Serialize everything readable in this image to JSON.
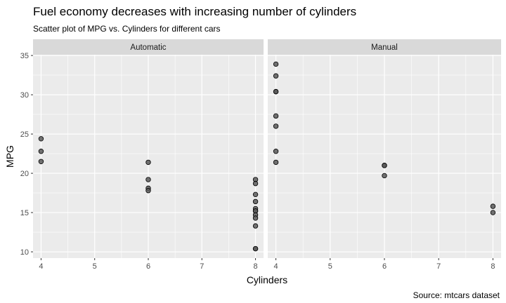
{
  "chart_data": {
    "type": "scatter",
    "title": "Fuel economy decreases with increasing number of cylinders",
    "subtitle": "Scatter plot of MPG vs. Cylinders for different cars",
    "caption": "Source: mtcars dataset",
    "xlabel": "Cylinders",
    "ylabel": "MPG",
    "xlim": [
      3.85,
      8.15
    ],
    "ylim": [
      9.2,
      35.1
    ],
    "xticks": [
      4,
      5,
      6,
      7,
      8
    ],
    "yticks": [
      10,
      15,
      20,
      25,
      30,
      35
    ],
    "grid": true,
    "colors": {
      "panel": "#ebebeb",
      "strip": "#d9d9d9",
      "grid": "#ffffff",
      "point_fill": "#595959",
      "point_stroke": "#000000",
      "axis_text": "#4d4d4d"
    },
    "panels": [
      {
        "name": "Automatic",
        "points": [
          {
            "x": 4,
            "y": 24.4
          },
          {
            "x": 4,
            "y": 22.8
          },
          {
            "x": 4,
            "y": 21.5
          },
          {
            "x": 6,
            "y": 21.4
          },
          {
            "x": 6,
            "y": 19.2
          },
          {
            "x": 6,
            "y": 18.1
          },
          {
            "x": 6,
            "y": 17.8
          },
          {
            "x": 8,
            "y": 19.2
          },
          {
            "x": 8,
            "y": 18.7
          },
          {
            "x": 8,
            "y": 17.3
          },
          {
            "x": 8,
            "y": 16.4
          },
          {
            "x": 8,
            "y": 15.5
          },
          {
            "x": 8,
            "y": 15.2
          },
          {
            "x": 8,
            "y": 15.2
          },
          {
            "x": 8,
            "y": 14.7
          },
          {
            "x": 8,
            "y": 14.3
          },
          {
            "x": 8,
            "y": 13.3
          },
          {
            "x": 8,
            "y": 10.4
          },
          {
            "x": 8,
            "y": 10.4
          }
        ]
      },
      {
        "name": "Manual",
        "points": [
          {
            "x": 4,
            "y": 33.9
          },
          {
            "x": 4,
            "y": 32.4
          },
          {
            "x": 4,
            "y": 30.4
          },
          {
            "x": 4,
            "y": 30.4
          },
          {
            "x": 4,
            "y": 27.3
          },
          {
            "x": 4,
            "y": 26.0
          },
          {
            "x": 4,
            "y": 22.8
          },
          {
            "x": 4,
            "y": 21.4
          },
          {
            "x": 6,
            "y": 21.0
          },
          {
            "x": 6,
            "y": 21.0
          },
          {
            "x": 6,
            "y": 19.7
          },
          {
            "x": 8,
            "y": 15.8
          },
          {
            "x": 8,
            "y": 15.0
          }
        ]
      }
    ]
  }
}
